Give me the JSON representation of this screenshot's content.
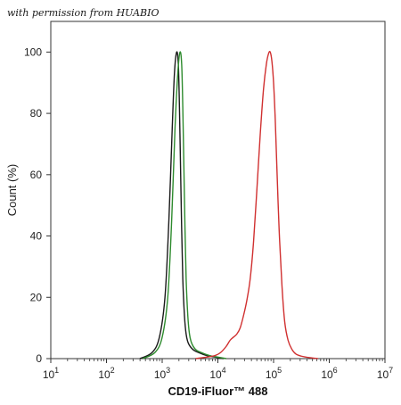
{
  "watermark": "with permission from HUABIO",
  "chart_data": {
    "type": "line",
    "title": "",
    "xlabel": "CD19-iFluor™ 488",
    "ylabel": "Count (%)",
    "xscale": "log",
    "xlim": [
      1,
      7
    ],
    "ylim": [
      0,
      110
    ],
    "x_ticks": [
      {
        "v": 1,
        "base": "10",
        "exp": "1"
      },
      {
        "v": 2,
        "base": "10",
        "exp": "2"
      },
      {
        "v": 3,
        "base": "10",
        "exp": "3"
      },
      {
        "v": 4,
        "base": "10",
        "exp": "4"
      },
      {
        "v": 5,
        "base": "10",
        "exp": "5"
      },
      {
        "v": 6,
        "base": "10",
        "exp": "6"
      },
      {
        "v": 7,
        "base": "10",
        "exp": "7"
      }
    ],
    "y_ticks": [
      0,
      20,
      40,
      60,
      80,
      100
    ],
    "grid": false,
    "legend": "none",
    "series": [
      {
        "color": "#1a1a1a",
        "x_log10": [
          2.6,
          2.82,
          2.95,
          3.05,
          3.12,
          3.18,
          3.22,
          3.26,
          3.29,
          3.31,
          3.33,
          3.35,
          3.37,
          3.4,
          3.43,
          3.47,
          3.55,
          3.65,
          3.8,
          3.95,
          4.1
        ],
        "y": [
          0,
          2,
          7,
          20,
          45,
          75,
          93,
          100,
          96,
          82,
          62,
          42,
          26,
          14,
          8,
          5,
          3,
          2,
          1,
          0.5,
          0
        ]
      },
      {
        "color": "#2e8b2e",
        "x_log10": [
          2.65,
          2.87,
          3.0,
          3.1,
          3.17,
          3.23,
          3.28,
          3.32,
          3.35,
          3.37,
          3.39,
          3.41,
          3.43,
          3.46,
          3.49,
          3.53,
          3.6,
          3.7,
          3.85,
          4.0,
          4.15
        ],
        "y": [
          0,
          2,
          7,
          20,
          45,
          75,
          93,
          100,
          96,
          82,
          62,
          42,
          26,
          14,
          8,
          5,
          3,
          2,
          1,
          0.5,
          0
        ]
      },
      {
        "color": "#d03030",
        "x_log10": [
          3.6,
          3.8,
          3.95,
          4.05,
          4.15,
          4.22,
          4.28,
          4.34,
          4.4,
          4.46,
          4.52,
          4.58,
          4.64,
          4.7,
          4.76,
          4.82,
          4.87,
          4.91,
          4.94,
          4.97,
          5.0,
          5.03,
          5.06,
          5.1,
          5.15,
          5.2,
          5.26,
          5.33,
          5.4,
          5.5,
          5.65,
          5.8
        ],
        "y": [
          0,
          0.5,
          1,
          2,
          4,
          6,
          7,
          8,
          10,
          14,
          19,
          26,
          38,
          55,
          73,
          88,
          96,
          99.5,
          100,
          97,
          90,
          78,
          62,
          42,
          24,
          12,
          6,
          3,
          1.5,
          0.8,
          0.3,
          0
        ]
      }
    ]
  }
}
